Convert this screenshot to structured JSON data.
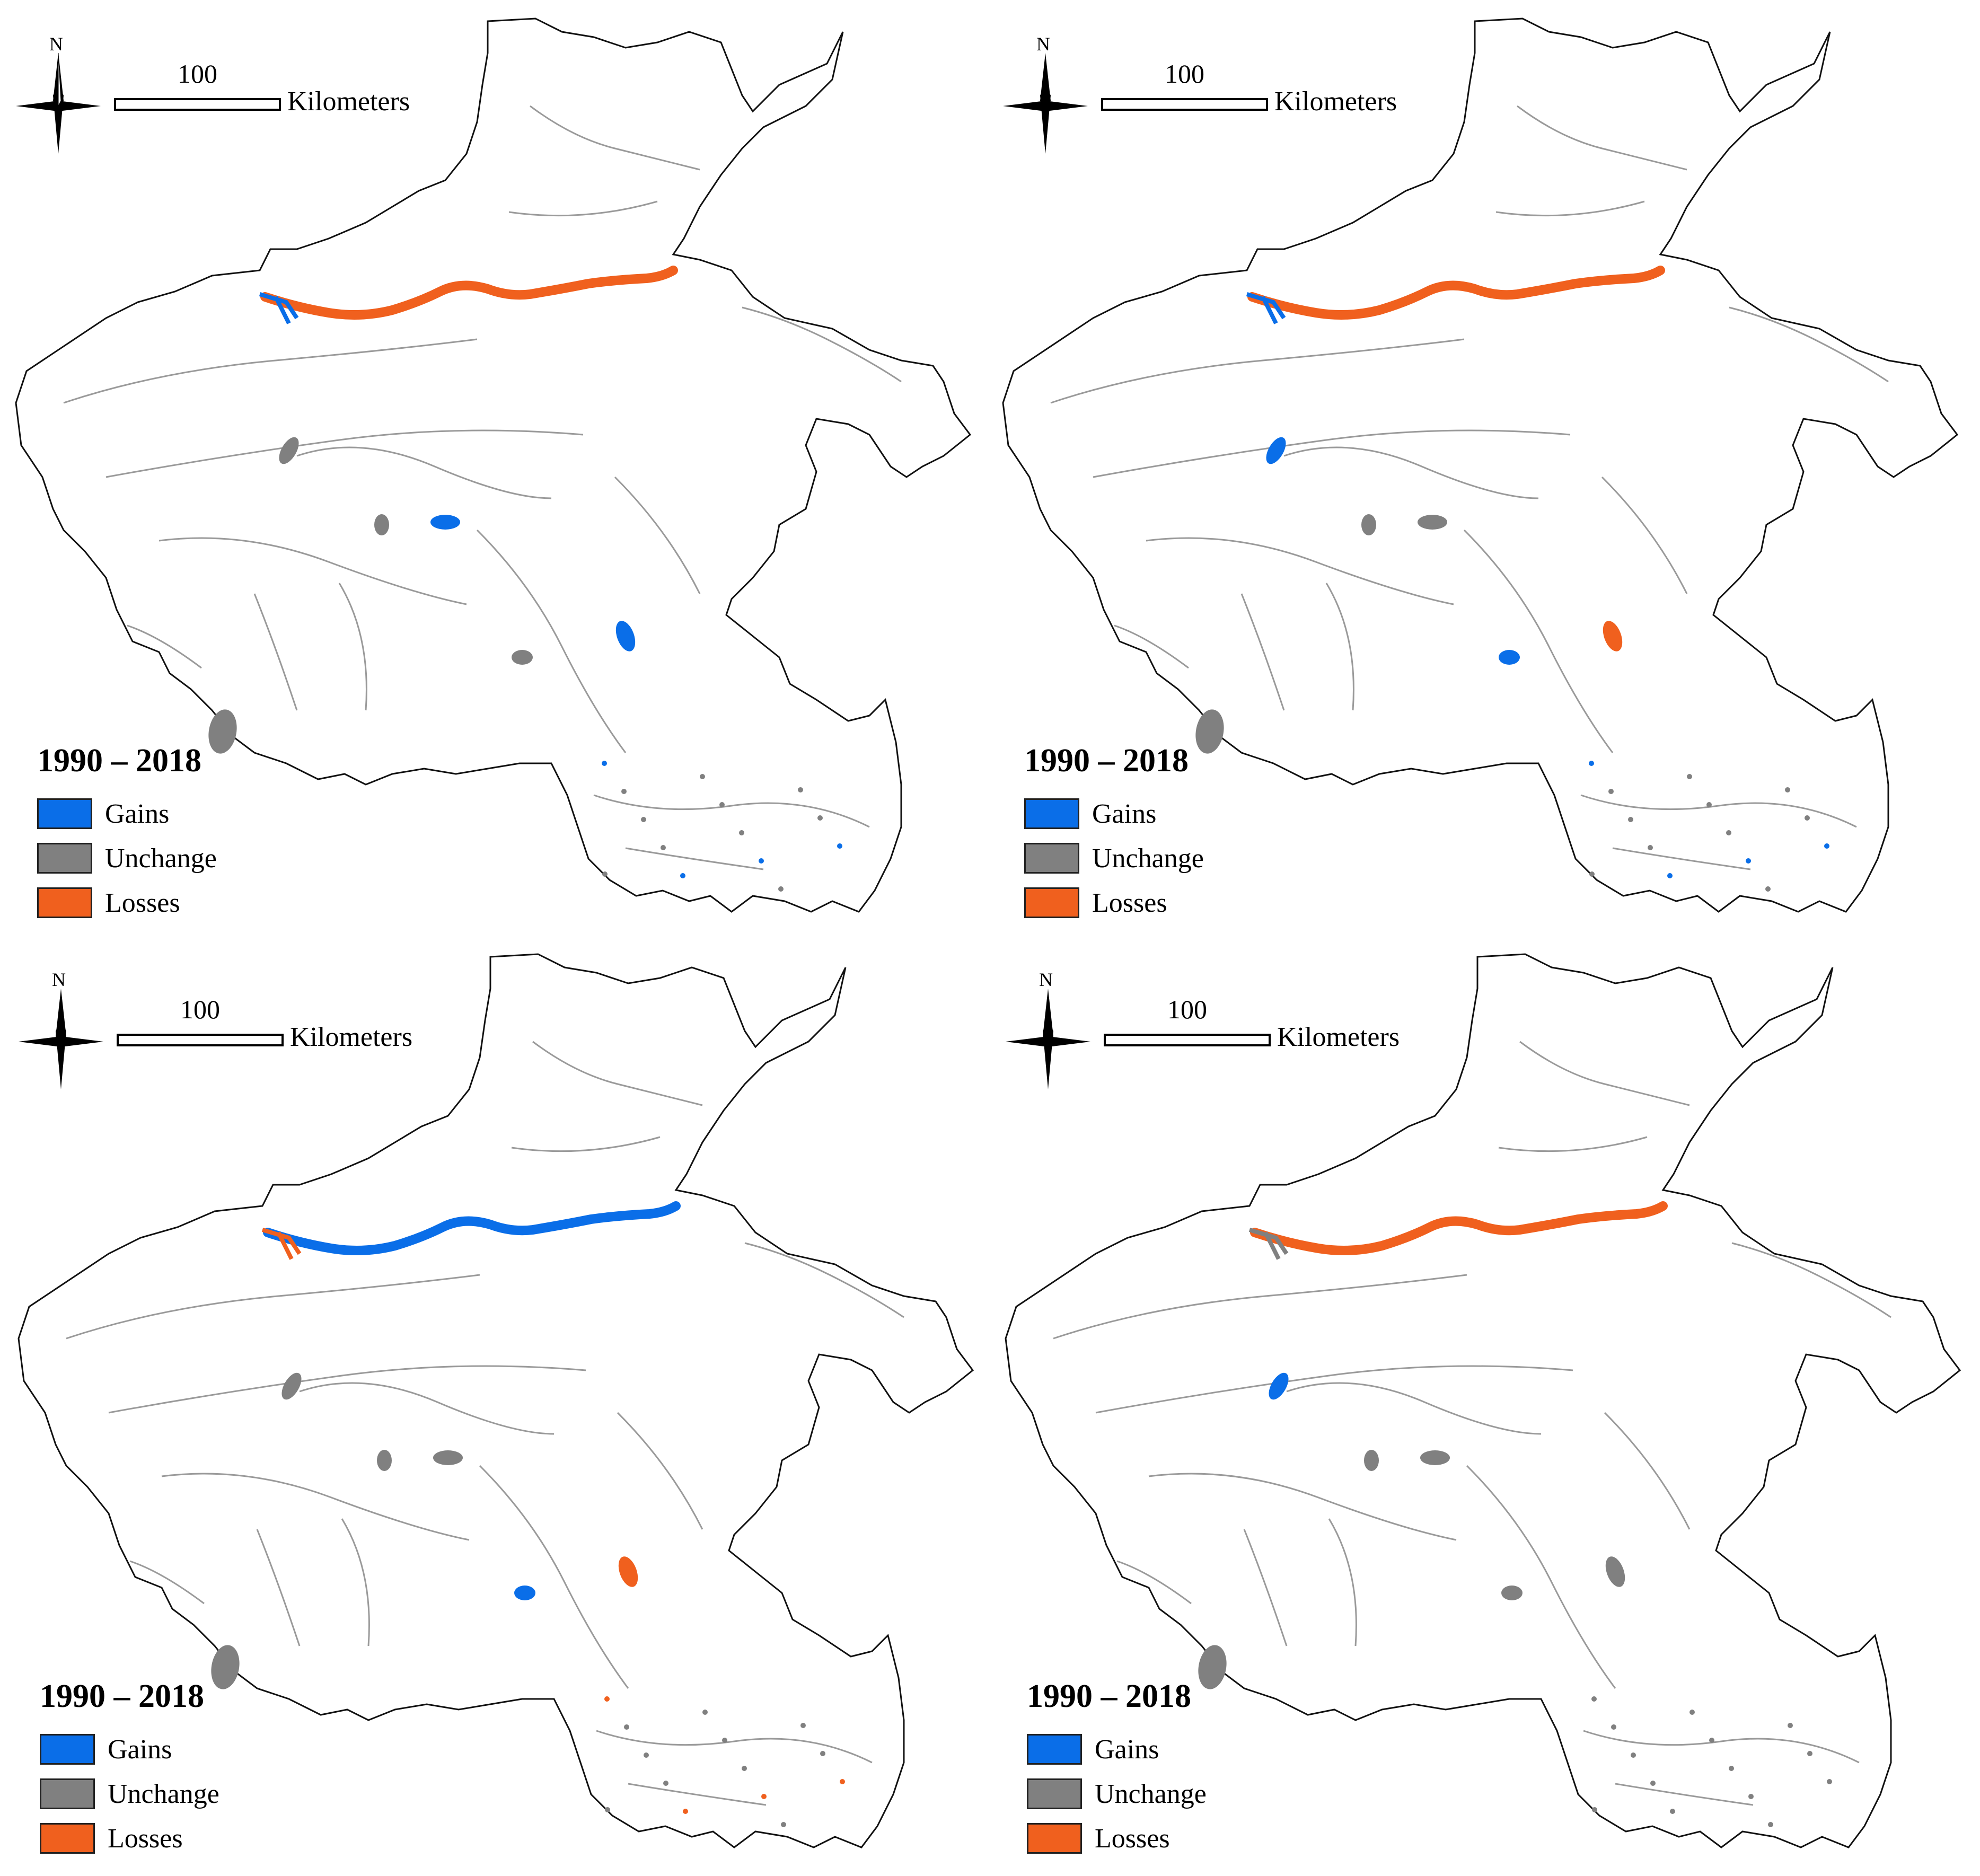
{
  "colors": {
    "gains": "#0a6ee8",
    "unchange": "#808080",
    "losses": "#f0601e",
    "river": "#9a9a9a"
  },
  "panels": [
    {
      "north_label": "N",
      "scale_value": "100",
      "scale_unit": "Kilometers",
      "legend": {
        "title": "1990 – 2018",
        "items": [
          {
            "label": "Gains"
          },
          {
            "label": "Unchange"
          },
          {
            "label": "Losses"
          }
        ]
      }
    },
    {
      "north_label": "N",
      "scale_value": "100",
      "scale_unit": "Kilometers",
      "legend": {
        "title": "1990 – 2018",
        "items": [
          {
            "label": "Gains"
          },
          {
            "label": "Unchange"
          },
          {
            "label": "Losses"
          }
        ]
      }
    },
    {
      "north_label": "N",
      "scale_value": "100",
      "scale_unit": "Kilometers",
      "legend": {
        "title": "1990 – 2018",
        "items": [
          {
            "label": "Gains"
          },
          {
            "label": "Unchange"
          },
          {
            "label": "Losses"
          }
        ]
      }
    },
    {
      "north_label": "N",
      "scale_value": "100",
      "scale_unit": "Kilometers",
      "legend": {
        "title": "1990 – 2018",
        "items": [
          {
            "label": "Gains"
          },
          {
            "label": "Unchange"
          },
          {
            "label": "Losses"
          }
        ]
      }
    }
  ]
}
